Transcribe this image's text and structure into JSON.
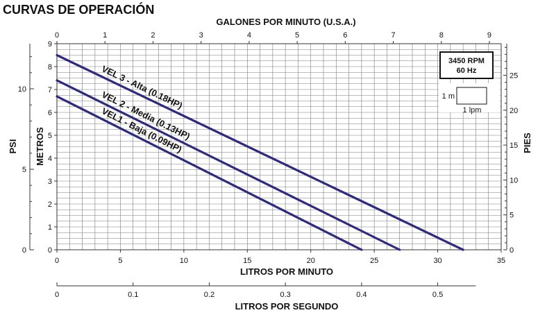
{
  "page": {
    "title": "CURVAS DE OPERACIÓN"
  },
  "chart_data": {
    "type": "line",
    "title": "CURVAS DE OPERACIÓN",
    "x_primary": {
      "label": "LITROS POR MINUTO",
      "range": [
        0,
        35
      ],
      "ticks": [
        "0",
        "5",
        "10",
        "15",
        "20",
        "25",
        "30",
        "35"
      ]
    },
    "x_top": {
      "label": "GALONES POR MINUTO (U.S.A.)",
      "ticks": [
        "0",
        "1",
        "2",
        "3",
        "4",
        "5",
        "6",
        "7",
        "8",
        "9"
      ]
    },
    "x_bottom2": {
      "label": "LITROS POR SEGUNDO",
      "ticks": [
        "0",
        "0.1",
        "0.2",
        "0.3",
        "0.4",
        "0.5"
      ]
    },
    "y_primary": {
      "label": "METROS",
      "range": [
        0,
        9
      ],
      "ticks": [
        "0",
        "1",
        "2",
        "3",
        "4",
        "5",
        "6",
        "7",
        "8",
        "9"
      ]
    },
    "y_psi": {
      "label": "PSI",
      "ticks": [
        "0",
        "5",
        "10"
      ]
    },
    "y_pies": {
      "label": "PIES",
      "ticks": [
        "0",
        "5",
        "10",
        "15",
        "20",
        "25"
      ]
    },
    "grid": true,
    "series": [
      {
        "name": "VEL 3 - Alta (0.18HP)",
        "x": [
          0,
          32
        ],
        "y": [
          8.5,
          0
        ]
      },
      {
        "name": "VEL 2 - Media (0.13HP)",
        "x": [
          0,
          27
        ],
        "y": [
          7.4,
          0
        ]
      },
      {
        "name": "VEL1 - Baja (0.09HP)",
        "x": [
          0,
          24
        ],
        "y": [
          6.7,
          0
        ]
      }
    ],
    "annotations": {
      "speed_box": {
        "line1": "3450 RPM",
        "line2": "60 Hz"
      },
      "scale_key": {
        "vertical": "1 m",
        "horizontal": "1 lpm"
      }
    }
  }
}
